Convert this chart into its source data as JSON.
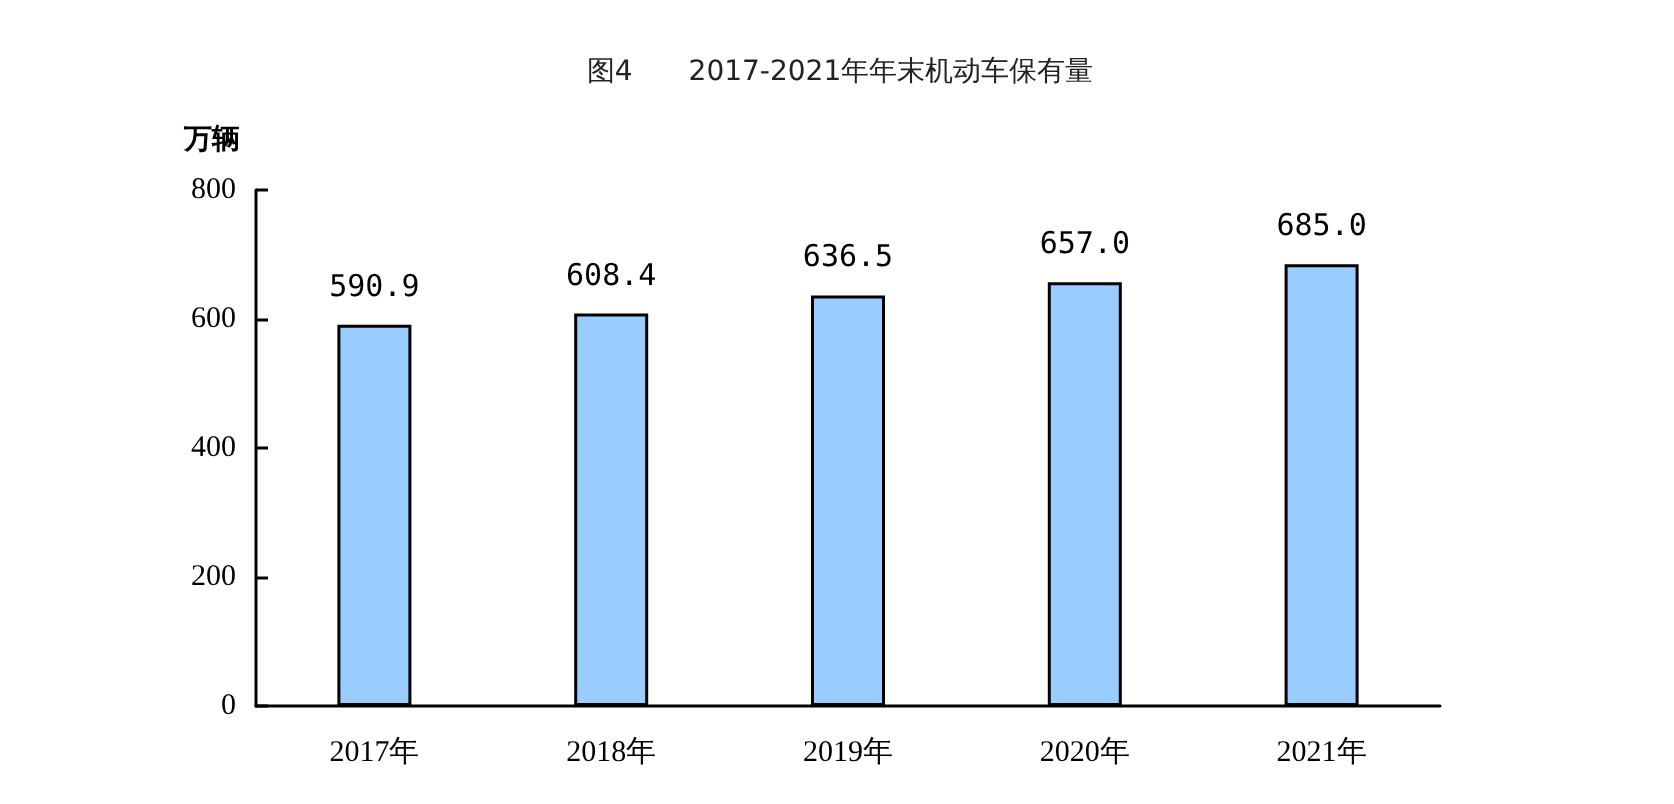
{
  "chart_data": {
    "type": "bar",
    "title": "图4　　2017-2021年年末机动车保有量",
    "ylabel": "万辆",
    "categories": [
      "2017年",
      "2018年",
      "2019年",
      "2020年",
      "2021年"
    ],
    "values": [
      590.9,
      608.4,
      636.5,
      657.0,
      685.0
    ],
    "value_labels": [
      "590.9",
      "608.4",
      "636.5",
      "657.0",
      "685.0"
    ],
    "color": "#99ccff",
    "ylim": [
      0,
      800
    ],
    "yticks": [
      0,
      200,
      400,
      600,
      800
    ],
    "grid": false
  }
}
